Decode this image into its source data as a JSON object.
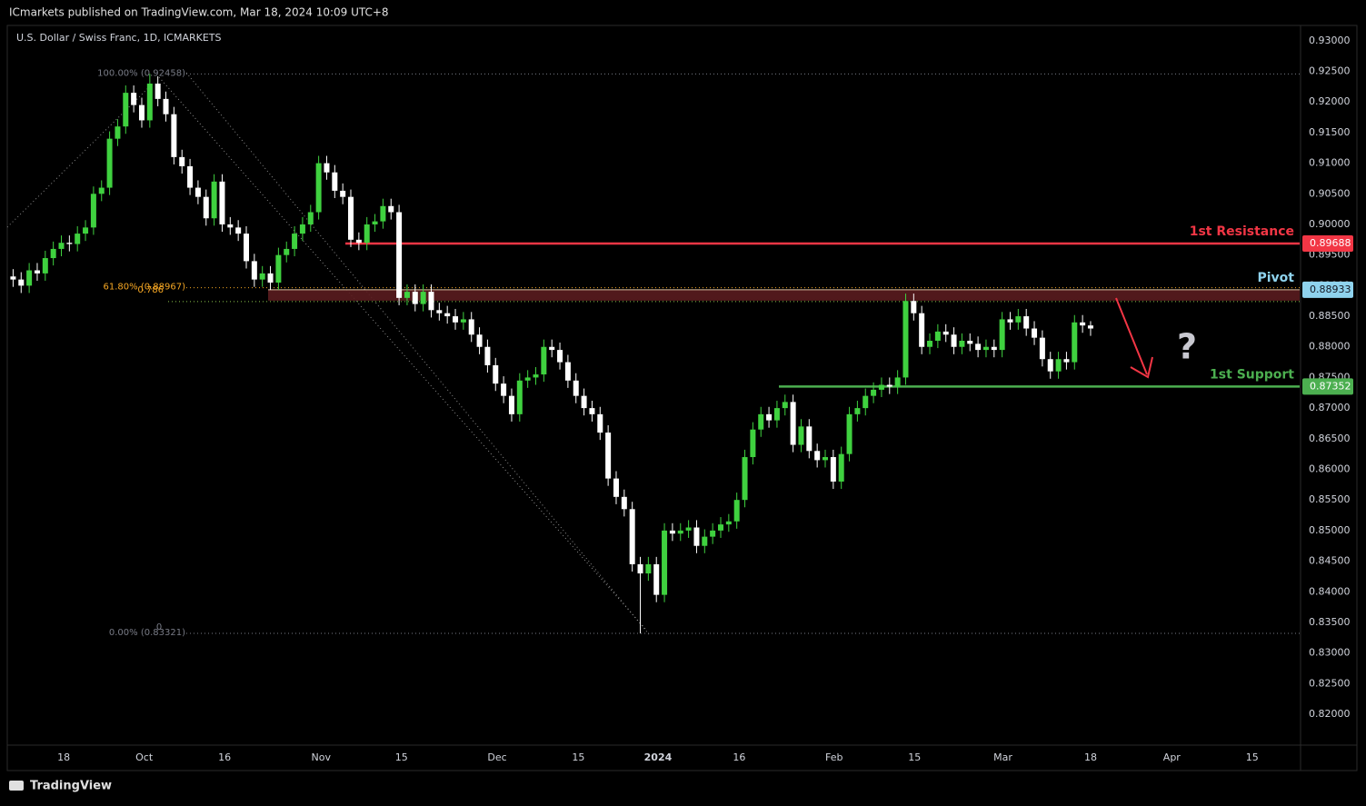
{
  "header": "ICmarkets published on TradingView.com, Mar 18, 2024 10:09 UTC+8",
  "footer": "TradingView",
  "chart_data": {
    "type": "candlestick",
    "title": "U.S. Dollar / Swiss Franc, 1D, ICMARKETS",
    "up_color": "#3fd13f",
    "down_color": "#ffffff",
    "xlim": [
      -0.5,
      160
    ],
    "xticks": [
      {
        "value": 6.3,
        "label": "18"
      },
      {
        "value": 16.3,
        "label": "Oct"
      },
      {
        "value": 26.3,
        "label": "16"
      },
      {
        "value": 38.3,
        "label": "Nov"
      },
      {
        "value": 48.3,
        "label": "15"
      },
      {
        "value": 60.2,
        "label": "Dec"
      },
      {
        "value": 70.3,
        "label": "15"
      },
      {
        "value": 80.2,
        "label": "2024"
      },
      {
        "value": 90.3,
        "label": "16"
      },
      {
        "value": 102.1,
        "label": "Feb"
      },
      {
        "value": 112.1,
        "label": "15"
      },
      {
        "value": 123.1,
        "label": "Mar"
      },
      {
        "value": 134,
        "label": "18"
      },
      {
        "value": 144.1,
        "label": "Apr"
      },
      {
        "value": 154.1,
        "label": "15"
      }
    ],
    "ylim": [
      0.8108,
      0.9325
    ],
    "yticks": [
      {
        "value": 0.93,
        "label": "0.93000"
      },
      {
        "value": 0.925,
        "label": "0.92500"
      },
      {
        "value": 0.92,
        "label": "0.92000"
      },
      {
        "value": 0.915,
        "label": "0.91500"
      },
      {
        "value": 0.91,
        "label": "0.91000"
      },
      {
        "value": 0.905,
        "label": "0.90500"
      },
      {
        "value": 0.9,
        "label": "0.90000"
      },
      {
        "value": 0.895,
        "label": "0.89500"
      },
      {
        "value": 0.89,
        "label": "0.89000"
      },
      {
        "value": 0.885,
        "label": "0.88500"
      },
      {
        "value": 0.88,
        "label": "0.88000"
      },
      {
        "value": 0.875,
        "label": "0.87500"
      },
      {
        "value": 0.87,
        "label": "0.87000"
      },
      {
        "value": 0.865,
        "label": "0.86500"
      },
      {
        "value": 0.86,
        "label": "0.86000"
      },
      {
        "value": 0.855,
        "label": "0.85500"
      },
      {
        "value": 0.85,
        "label": "0.85000"
      },
      {
        "value": 0.845,
        "label": "0.84500"
      },
      {
        "value": 0.84,
        "label": "0.84000"
      },
      {
        "value": 0.835,
        "label": "0.83500"
      },
      {
        "value": 0.83,
        "label": "0.83000"
      },
      {
        "value": 0.825,
        "label": "0.82500"
      },
      {
        "value": 0.82,
        "label": "0.82000"
      }
    ],
    "grid": false,
    "x": [
      0,
      1,
      2,
      3,
      4,
      5,
      6,
      7,
      8,
      9,
      10,
      11,
      12,
      13,
      14,
      15,
      16,
      17,
      18,
      19,
      20,
      21,
      22,
      23,
      24,
      25,
      26,
      27,
      28,
      29,
      30,
      31,
      32,
      33,
      34,
      35,
      36,
      37,
      38,
      39,
      40,
      41,
      42,
      43,
      44,
      45,
      46,
      47,
      48,
      49,
      50,
      51,
      52,
      53,
      54,
      55,
      56,
      57,
      58,
      59,
      60,
      61,
      62,
      63,
      64,
      65,
      66,
      67,
      68,
      69,
      70,
      71,
      72,
      73,
      74,
      75,
      76,
      77,
      78,
      79,
      80,
      81,
      82,
      83,
      84,
      85,
      86,
      87,
      88,
      89,
      90,
      91,
      92,
      93,
      94,
      95,
      96,
      97,
      98,
      99,
      100,
      101,
      102,
      103,
      104,
      105,
      106,
      107,
      108,
      109,
      110,
      111,
      112,
      113,
      114,
      115,
      116,
      117,
      118,
      119,
      120,
      121,
      122,
      123,
      124,
      125,
      126,
      127,
      128,
      129,
      130,
      131,
      132,
      133,
      134
    ],
    "open": [
      0.8915,
      0.891,
      0.89,
      0.8925,
      0.892,
      0.8945,
      0.896,
      0.897,
      0.8968,
      0.8985,
      0.8995,
      0.905,
      0.906,
      0.914,
      0.916,
      0.9215,
      0.9195,
      0.917,
      0.923,
      0.9205,
      0.918,
      0.911,
      0.9095,
      0.906,
      0.9045,
      0.901,
      0.907,
      0.9,
      0.8995,
      0.8985,
      0.894,
      0.891,
      0.892,
      0.8905,
      0.895,
      0.896,
      0.8985,
      0.9,
      0.902,
      0.91,
      0.9085,
      0.9055,
      0.9045,
      0.8975,
      0.897,
      0.9,
      0.9005,
      0.903,
      0.902,
      0.888,
      0.889,
      0.887,
      0.889,
      0.886,
      0.8855,
      0.885,
      0.884,
      0.8845,
      0.882,
      0.88,
      0.877,
      0.874,
      0.872,
      0.869,
      0.8745,
      0.875,
      0.8755,
      0.88,
      0.8795,
      0.8775,
      0.8745,
      0.872,
      0.87,
      0.869,
      0.866,
      0.8585,
      0.8555,
      0.8535,
      0.8445,
      0.843,
      0.8445,
      0.8395,
      0.85,
      0.8495,
      0.85,
      0.8505,
      0.8475,
      0.849,
      0.85,
      0.851,
      0.8515,
      0.855,
      0.862,
      0.8665,
      0.869,
      0.868,
      0.87,
      0.871,
      0.864,
      0.867,
      0.863,
      0.8615,
      0.862,
      0.858,
      0.8625,
      0.869,
      0.87,
      0.872,
      0.873,
      0.8738,
      0.8735,
      0.875,
      0.8875,
      0.8855,
      0.88,
      0.881,
      0.8825,
      0.882,
      0.88,
      0.881,
      0.8805,
      0.8795,
      0.88,
      0.8795,
      0.8845,
      0.884,
      0.885,
      0.883,
      0.8815,
      0.878,
      0.876,
      0.878,
      0.8775,
      0.884,
      0.8835
    ],
    "high": [
      0.8927,
      0.8922,
      0.8937,
      0.8937,
      0.8957,
      0.8972,
      0.8982,
      0.8982,
      0.8997,
      0.9007,
      0.9062,
      0.9072,
      0.9152,
      0.9172,
      0.9227,
      0.9227,
      0.9207,
      0.9246,
      0.9242,
      0.9217,
      0.9192,
      0.9122,
      0.9107,
      0.9072,
      0.9057,
      0.9082,
      0.9082,
      0.9012,
      0.9007,
      0.8997,
      0.8952,
      0.8932,
      0.8932,
      0.8962,
      0.8972,
      0.8997,
      0.9012,
      0.9032,
      0.9112,
      0.9112,
      0.9097,
      0.9067,
      0.9057,
      0.8987,
      0.9012,
      0.9017,
      0.9042,
      0.9042,
      0.9032,
      0.8902,
      0.8902,
      0.8902,
      0.8902,
      0.8872,
      0.8867,
      0.8862,
      0.8857,
      0.8857,
      0.8832,
      0.8812,
      0.8782,
      0.8752,
      0.8732,
      0.8757,
      0.8762,
      0.8767,
      0.8812,
      0.8812,
      0.8807,
      0.8787,
      0.8757,
      0.8732,
      0.8712,
      0.8702,
      0.8672,
      0.8597,
      0.8567,
      0.8547,
      0.8457,
      0.8457,
      0.8457,
      0.8512,
      0.8512,
      0.8512,
      0.8517,
      0.8517,
      0.8502,
      0.8512,
      0.8522,
      0.8527,
      0.8562,
      0.8632,
      0.8677,
      0.8702,
      0.8702,
      0.8712,
      0.8722,
      0.8722,
      0.8682,
      0.8682,
      0.8642,
      0.8632,
      0.8632,
      0.8637,
      0.8702,
      0.8712,
      0.8732,
      0.8742,
      0.875,
      0.875,
      0.8762,
      0.8887,
      0.8887,
      0.8867,
      0.8822,
      0.8837,
      0.8837,
      0.8832,
      0.8822,
      0.8822,
      0.8817,
      0.8812,
      0.8812,
      0.8857,
      0.8857,
      0.8862,
      0.8862,
      0.8842,
      0.8827,
      0.8792,
      0.8792,
      0.8792,
      0.8852,
      0.8852,
      0.8842
    ],
    "low": [
      0.8898,
      0.8888,
      0.8888,
      0.8908,
      0.8908,
      0.8933,
      0.8948,
      0.8956,
      0.8956,
      0.8973,
      0.8983,
      0.9038,
      0.9048,
      0.9128,
      0.9148,
      0.9183,
      0.9158,
      0.9158,
      0.9193,
      0.9168,
      0.9098,
      0.9083,
      0.9048,
      0.9033,
      0.8998,
      0.8998,
      0.8988,
      0.8983,
      0.8973,
      0.8928,
      0.8898,
      0.8898,
      0.8893,
      0.8893,
      0.8938,
      0.8948,
      0.8973,
      0.8988,
      0.9008,
      0.9073,
      0.9043,
      0.9033,
      0.8963,
      0.8958,
      0.8958,
      0.8988,
      0.8993,
      0.9008,
      0.8868,
      0.8868,
      0.8858,
      0.8858,
      0.8848,
      0.8843,
      0.8838,
      0.8828,
      0.8828,
      0.8808,
      0.8788,
      0.8758,
      0.8728,
      0.8708,
      0.8678,
      0.8678,
      0.8733,
      0.8738,
      0.8743,
      0.8783,
      0.8763,
      0.8733,
      0.8708,
      0.8688,
      0.8678,
      0.8648,
      0.8573,
      0.8543,
      0.8523,
      0.8433,
      0.8332,
      0.8418,
      0.8383,
      0.8383,
      0.8483,
      0.8483,
      0.8488,
      0.8463,
      0.8463,
      0.8478,
      0.8488,
      0.8498,
      0.8503,
      0.8538,
      0.8608,
      0.8653,
      0.8668,
      0.8668,
      0.8688,
      0.8628,
      0.8628,
      0.8618,
      0.8603,
      0.8603,
      0.8568,
      0.8568,
      0.8613,
      0.8678,
      0.8688,
      0.8708,
      0.8718,
      0.8723,
      0.8723,
      0.8738,
      0.8843,
      0.8788,
      0.8788,
      0.8798,
      0.8808,
      0.8788,
      0.8788,
      0.8793,
      0.8783,
      0.8783,
      0.8783,
      0.8783,
      0.8828,
      0.8828,
      0.8818,
      0.8803,
      0.8768,
      0.8748,
      0.8748,
      0.8763,
      0.8763,
      0.8823,
      0.8818
    ],
    "close": [
      0.891,
      0.89,
      0.8925,
      0.892,
      0.8945,
      0.896,
      0.897,
      0.8968,
      0.8985,
      0.8995,
      0.905,
      0.906,
      0.914,
      0.916,
      0.9215,
      0.9195,
      0.917,
      0.923,
      0.9205,
      0.918,
      0.911,
      0.9095,
      0.906,
      0.9045,
      0.901,
      0.907,
      0.9,
      0.8995,
      0.8985,
      0.894,
      0.891,
      0.892,
      0.8905,
      0.895,
      0.896,
      0.8985,
      0.9,
      0.902,
      0.91,
      0.9085,
      0.9055,
      0.9045,
      0.8975,
      0.897,
      0.9,
      0.9005,
      0.903,
      0.902,
      0.888,
      0.889,
      0.887,
      0.889,
      0.886,
      0.8855,
      0.885,
      0.884,
      0.8845,
      0.882,
      0.88,
      0.877,
      0.874,
      0.872,
      0.869,
      0.8745,
      0.875,
      0.8755,
      0.88,
      0.8795,
      0.8775,
      0.8745,
      0.872,
      0.87,
      0.869,
      0.866,
      0.8585,
      0.8555,
      0.8535,
      0.8445,
      0.843,
      0.8445,
      0.8395,
      0.85,
      0.8495,
      0.85,
      0.8505,
      0.8475,
      0.849,
      0.85,
      0.851,
      0.8515,
      0.855,
      0.862,
      0.8665,
      0.869,
      0.868,
      0.87,
      0.871,
      0.864,
      0.867,
      0.863,
      0.8615,
      0.862,
      0.858,
      0.8625,
      0.869,
      0.87,
      0.872,
      0.873,
      0.8738,
      0.8735,
      0.875,
      0.8875,
      0.8855,
      0.88,
      0.881,
      0.8825,
      0.882,
      0.88,
      0.881,
      0.8805,
      0.8795,
      0.88,
      0.8795,
      0.8845,
      0.884,
      0.885,
      0.883,
      0.8815,
      0.878,
      0.876,
      0.878,
      0.8775,
      0.884,
      0.8835,
      0.883
    ],
    "levels": [
      {
        "name": "1st Resistance",
        "value": 0.89688,
        "color": "#f23645"
      },
      {
        "name": "Pivot",
        "value": 0.88933,
        "color": "#8fd3ee"
      },
      {
        "name": "1st Support",
        "value": 0.87352,
        "color": "#4caf50"
      }
    ],
    "fib": [
      {
        "label": "100.00% (0.92458)",
        "value": 0.92458,
        "color": "#787b86"
      },
      {
        "label": "61.80% (0.88967)",
        "value": 0.88967,
        "color": "#f5a623"
      },
      {
        "label": "0.786",
        "value": 0.8874,
        "color": "#8bc34a"
      },
      {
        "label": "0.00% (0.83321)",
        "value": 0.83321,
        "color": "#787b86"
      }
    ],
    "annotations": [
      "0",
      "?"
    ]
  }
}
